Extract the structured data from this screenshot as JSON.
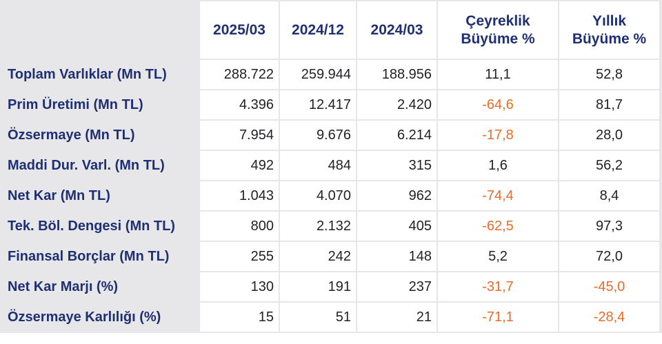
{
  "table": {
    "columns": [
      "2025/03",
      "2024/12",
      "2024/03",
      "Çeyreklik\nBüyüme %",
      "Yıllık\nBüyüme %"
    ],
    "rows": [
      {
        "label": "Toplam Varlıklar (Mn TL)",
        "cells": [
          "288.722",
          "259.944",
          "188.956",
          "11,1",
          "52,8"
        ]
      },
      {
        "label": "Prim Üretimi (Mn TL)",
        "cells": [
          "4.396",
          "12.417",
          "2.420",
          "-64,6",
          "81,7"
        ]
      },
      {
        "label": "Özsermaye (Mn TL)",
        "cells": [
          "7.954",
          "9.676",
          "6.214",
          "-17,8",
          "28,0"
        ]
      },
      {
        "label": "Maddi Dur. Varl. (Mn TL)",
        "cells": [
          "492",
          "484",
          "315",
          "1,6",
          "56,2"
        ]
      },
      {
        "label": "Net Kar (Mn TL)",
        "cells": [
          "1.043",
          "4.070",
          "962",
          "-74,4",
          "8,4"
        ]
      },
      {
        "label": "Tek. Böl. Dengesi (Mn TL)",
        "cells": [
          "800",
          "2.132",
          "405",
          "-62,5",
          "97,3"
        ]
      },
      {
        "label": "Finansal Borçlar (Mn TL)",
        "cells": [
          "255",
          "242",
          "148",
          "5,2",
          "72,0"
        ]
      },
      {
        "label": "Net Kar Marjı (%)",
        "cells": [
          "130",
          "191",
          "237",
          "-31,7",
          "-45,0"
        ]
      },
      {
        "label": "Özsermaye Karlılığı (%)",
        "cells": [
          "15",
          "51",
          "21",
          "-71,1",
          "-28,4"
        ]
      }
    ]
  },
  "colors": {
    "label_text": "#1f2f73",
    "negative": "#ea6b2b",
    "background": "#e7e7e9"
  }
}
